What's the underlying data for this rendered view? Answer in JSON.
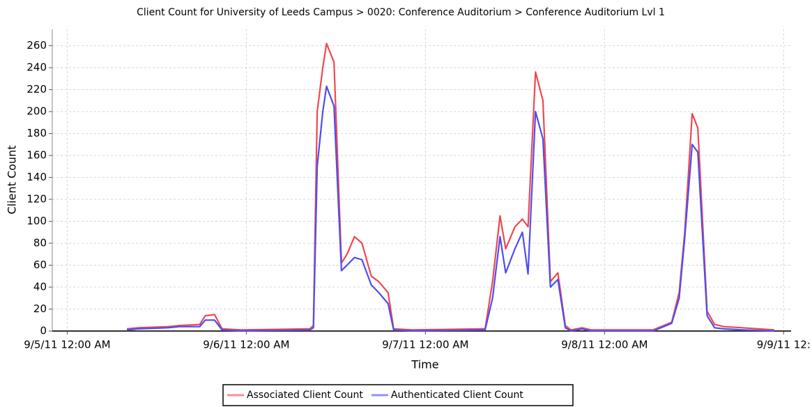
{
  "chart_data": {
    "type": "line",
    "title": "Client Count for University of Leeds Campus > 0020: Conference Auditorium > Conference Auditorium Lvl 1",
    "x_label": "Time",
    "y_label": "Client Count",
    "x": [
      "2011-09-05T08:00",
      "2011-09-05T09:30",
      "2011-09-05T13:30",
      "2011-09-05T15:00",
      "2011-09-05T17:45",
      "2011-09-05T18:30",
      "2011-09-05T19:45",
      "2011-09-05T20:45",
      "2011-09-05T23:15",
      "2011-09-06T08:30",
      "2011-09-06T09:00",
      "2011-09-06T09:30",
      "2011-09-06T10:15",
      "2011-09-06T10:45",
      "2011-09-06T11:45",
      "2011-09-06T12:45",
      "2011-09-06T13:30",
      "2011-09-06T14:30",
      "2011-09-06T15:30",
      "2011-09-06T16:45",
      "2011-09-06T17:45",
      "2011-09-06T19:00",
      "2011-09-06T19:45",
      "2011-09-06T22:15",
      "2011-09-07T07:30",
      "2011-09-07T08:00",
      "2011-09-07T09:00",
      "2011-09-07T10:00",
      "2011-09-07T10:45",
      "2011-09-07T12:00",
      "2011-09-07T13:00",
      "2011-09-07T13:45",
      "2011-09-07T14:45",
      "2011-09-07T15:45",
      "2011-09-07T16:45",
      "2011-09-07T17:45",
      "2011-09-07T18:45",
      "2011-09-07T19:30",
      "2011-09-07T21:00",
      "2011-09-07T22:15",
      "2011-09-08T06:30",
      "2011-09-08T09:00",
      "2011-09-08T10:00",
      "2011-09-08T10:45",
      "2011-09-08T11:45",
      "2011-09-08T12:30",
      "2011-09-08T13:45",
      "2011-09-08T14:45",
      "2011-09-08T16:00",
      "2011-09-08T18:30",
      "2011-09-08T22:45"
    ],
    "series": [
      {
        "name": "Associated Client Count",
        "color": "#f0474f",
        "values": [
          2,
          3,
          4,
          5,
          6,
          14,
          15,
          2,
          1,
          2,
          5,
          200,
          240,
          262,
          245,
          62,
          70,
          86,
          80,
          50,
          45,
          35,
          2,
          1,
          2,
          2,
          45,
          105,
          75,
          95,
          102,
          95,
          236,
          210,
          45,
          53,
          5,
          1,
          3,
          1,
          1,
          8,
          35,
          90,
          198,
          185,
          18,
          6,
          4,
          3,
          1
        ]
      },
      {
        "name": "Authenticated Client Count",
        "color": "#4d4df2",
        "values": [
          1,
          2,
          3,
          4,
          4,
          10,
          10,
          1,
          0,
          1,
          3,
          150,
          200,
          223,
          205,
          55,
          60,
          67,
          65,
          42,
          35,
          25,
          1,
          0,
          1,
          1,
          30,
          86,
          53,
          75,
          90,
          52,
          200,
          175,
          40,
          47,
          3,
          0,
          2,
          0,
          0,
          7,
          30,
          85,
          170,
          163,
          14,
          3,
          2,
          1,
          0
        ]
      }
    ],
    "xlim": [
      "2011-09-04T22:00",
      "2011-09-09T01:00"
    ],
    "xticks": [
      {
        "value": "2011-09-05T00:00",
        "label": "9/5/11 12:00 AM"
      },
      {
        "value": "2011-09-06T00:00",
        "label": "9/6/11 12:00 AM"
      },
      {
        "value": "2011-09-07T00:00",
        "label": "9/7/11 12:00 AM"
      },
      {
        "value": "2011-09-08T00:00",
        "label": "9/8/11 12:00 AM"
      },
      {
        "value": "2011-09-09T00:00",
        "label": "9/9/11 12:"
      }
    ],
    "ylim": [
      0,
      275
    ],
    "yticks": [
      0,
      20,
      40,
      60,
      80,
      100,
      120,
      140,
      160,
      180,
      200,
      220,
      240,
      260
    ],
    "grid": true
  }
}
